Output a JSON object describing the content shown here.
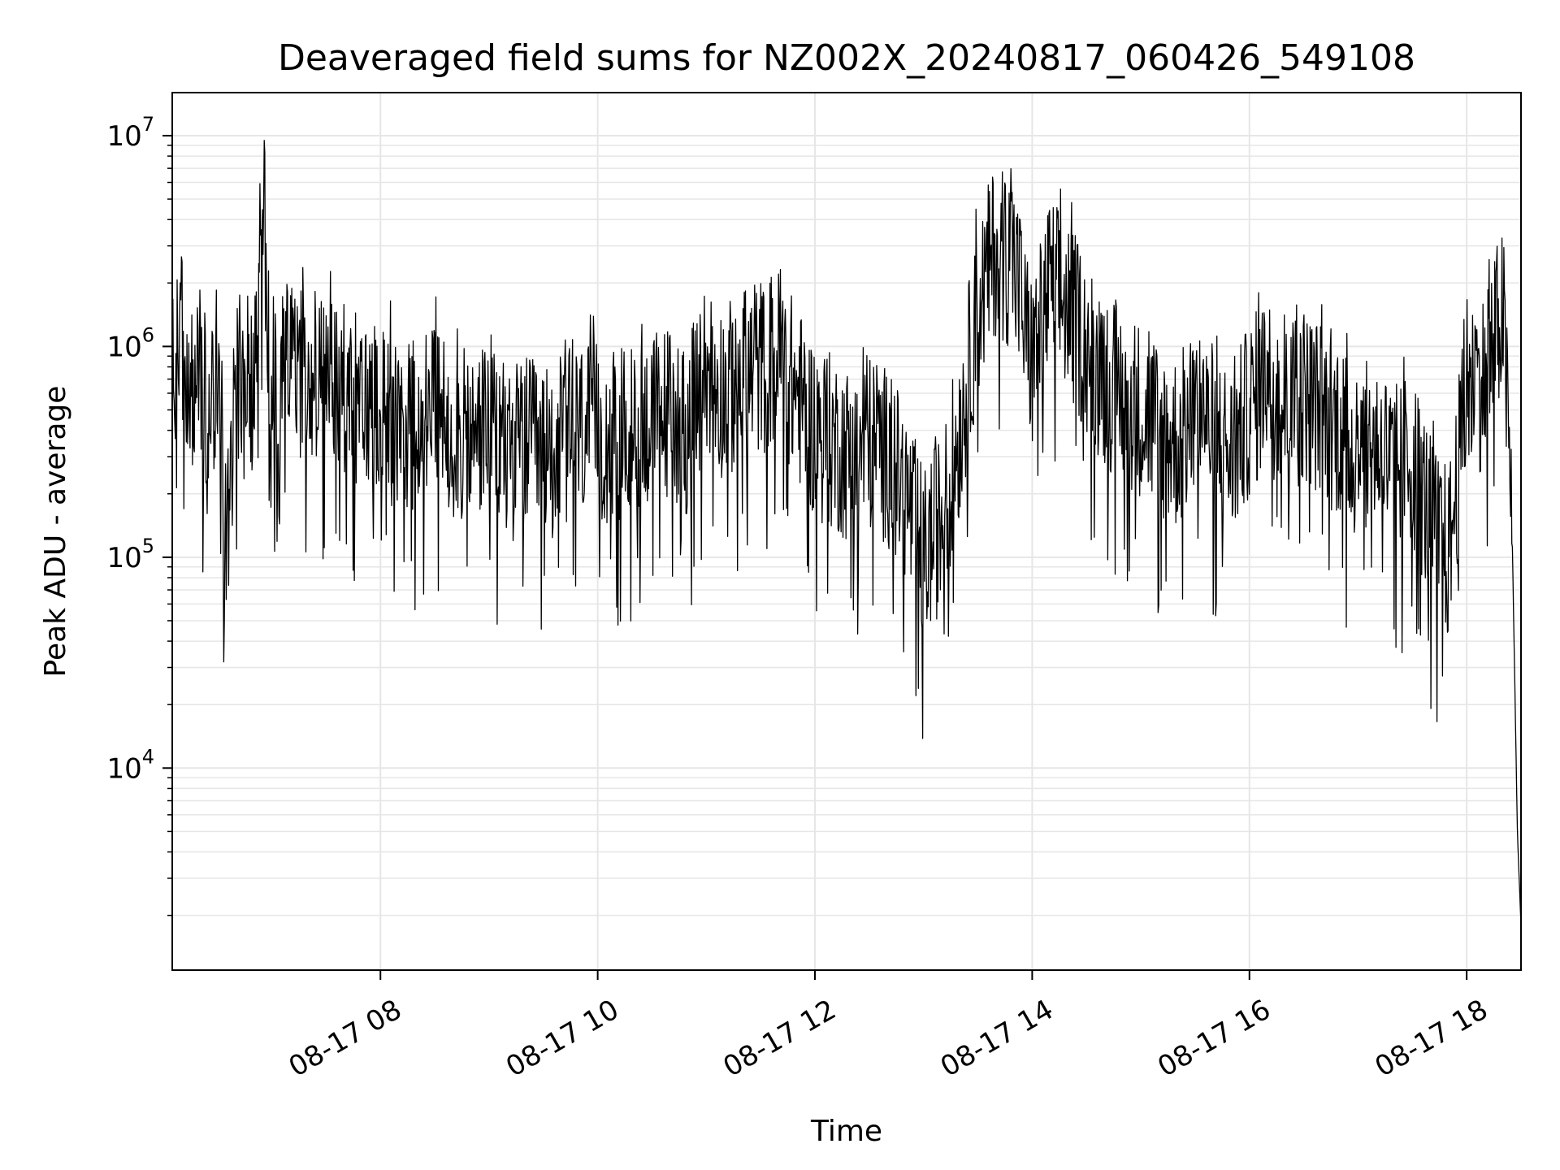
{
  "chart_data": {
    "type": "line",
    "title": "Deaveraged field sums for NZ002X_20240817_060426_549108",
    "xlabel": "Time",
    "ylabel": "Peak ADU - average",
    "y_scale": "log",
    "ylim": [
      1100,
      16000000
    ],
    "xlim": [
      "08-17 06:05",
      "08-17 18:30"
    ],
    "grid": true,
    "line_color": "#000000",
    "x_ticks": [
      "08-17 08",
      "08-17 10",
      "08-17 12",
      "08-17 14",
      "08-17 16",
      "08-17 18"
    ],
    "y_ticks": [
      {
        "base": "10",
        "exp": "4"
      },
      {
        "base": "10",
        "exp": "5"
      },
      {
        "base": "10",
        "exp": "6"
      },
      {
        "base": "10",
        "exp": "7"
      }
    ],
    "series": [
      {
        "x": [
          "08-17 06:05",
          "08-17 06:10",
          "08-17 06:15",
          "08-17 06:20",
          "08-17 06:25",
          "08-17 06:30",
          "08-17 06:35",
          "08-17 06:40",
          "08-17 06:45",
          "08-17 06:50",
          "08-17 06:55",
          "08-17 07:00",
          "08-17 07:10",
          "08-17 07:20",
          "08-17 07:30",
          "08-17 07:40",
          "08-17 07:50",
          "08-17 08:00",
          "08-17 08:10",
          "08-17 08:20",
          "08-17 08:30",
          "08-17 08:40",
          "08-17 08:50",
          "08-17 09:00",
          "08-17 09:10",
          "08-17 09:20",
          "08-17 09:30",
          "08-17 09:40",
          "08-17 09:50",
          "08-17 10:00",
          "08-17 10:10",
          "08-17 10:20",
          "08-17 10:30",
          "08-17 10:40",
          "08-17 10:50",
          "08-17 11:00",
          "08-17 11:10",
          "08-17 11:20",
          "08-17 11:30",
          "08-17 11:40",
          "08-17 11:50",
          "08-17 12:00",
          "08-17 12:10",
          "08-17 12:20",
          "08-17 12:30",
          "08-17 12:40",
          "08-17 12:50",
          "08-17 13:00",
          "08-17 13:10",
          "08-17 13:20",
          "08-17 13:30",
          "08-17 13:40",
          "08-17 13:50",
          "08-17 14:00",
          "08-17 14:10",
          "08-17 14:20",
          "08-17 14:30",
          "08-17 14:40",
          "08-17 14:50",
          "08-17 15:00",
          "08-17 15:10",
          "08-17 15:20",
          "08-17 15:30",
          "08-17 15:40",
          "08-17 15:50",
          "08-17 16:00",
          "08-17 16:10",
          "08-17 16:20",
          "08-17 16:30",
          "08-17 16:40",
          "08-17 16:50",
          "08-17 17:00",
          "08-17 17:10",
          "08-17 17:20",
          "08-17 17:30",
          "08-17 17:40",
          "08-17 17:50",
          "08-17 18:00",
          "08-17 18:10",
          "08-17 18:20",
          "08-17 18:25",
          "08-17 18:28",
          "08-17 18:30"
        ],
        "y": [
          600000,
          2000000,
          500000,
          900000,
          300000,
          1000000,
          100000,
          800000,
          600000,
          700000,
          5500000,
          500000,
          900000,
          600000,
          700000,
          650000,
          500000,
          600000,
          400000,
          450000,
          500000,
          400000,
          350000,
          450000,
          300000,
          350000,
          300000,
          350000,
          400000,
          400000,
          350000,
          400000,
          450000,
          500000,
          400000,
          800000,
          600000,
          700000,
          800000,
          900000,
          600000,
          400000,
          350000,
          300000,
          350000,
          300000,
          200000,
          100000,
          150000,
          400000,
          1500000,
          3000000,
          2500000,
          800000,
          2000000,
          1500000,
          1000000,
          700000,
          600000,
          500000,
          400000,
          350000,
          450000,
          400000,
          300000,
          500000,
          700000,
          500000,
          600000,
          500000,
          400000,
          300000,
          350000,
          250000,
          300000,
          150000,
          100000,
          600000,
          700000,
          1500000,
          150000,
          5000,
          1800
        ]
      }
    ]
  }
}
